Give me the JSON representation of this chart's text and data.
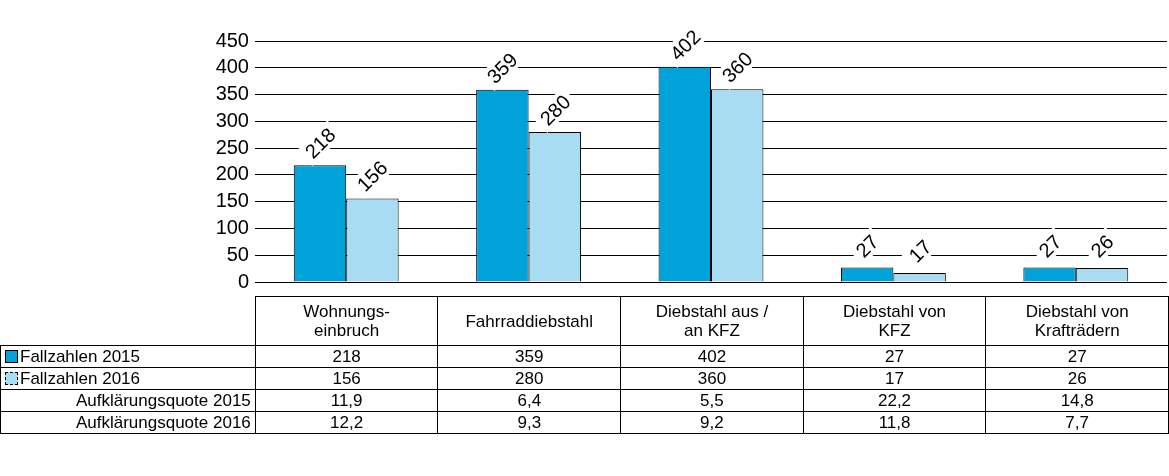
{
  "chart_data": [
    {
      "type": "bar",
      "categories": [
        null,
        null,
        null,
        null,
        null
      ],
      "series": [
        {
          "color": "#00a3d9",
          "values": [
            218,
            359,
            402,
            27,
            27
          ],
          "value_labels": [
            "218",
            "359",
            "402",
            "27",
            "27"
          ]
        },
        {
          "color": "#a8dcf2",
          "line_style": "dashed",
          "values": [
            156,
            280,
            360,
            17,
            26
          ],
          "value_labels": [
            "156",
            "280",
            "360",
            "17",
            "26"
          ]
        }
      ],
      "ylim": [
        0,
        450
      ],
      "yticks": [
        0,
        50,
        100,
        150,
        200,
        250,
        300,
        350,
        400,
        450
      ],
      "grid": "y"
    },
    {
      "type": "other",
      "categories": [
        "Wohnungs-\neinbruch",
        "Fahrraddiebstahl",
        "Diebstahl aus /\nan KFZ",
        "Diebstahl von\nKFZ",
        "Diebstahl von\nKrafträdern"
      ],
      "series": [
        {
          "name": "Fallzahlen 2015",
          "color": "#00a3d9",
          "values": [
            218,
            359,
            402,
            27,
            27
          ]
        },
        {
          "name": "Fallzahlen 2016",
          "color": "#a8dcf2",
          "line_style": "dashed",
          "values": [
            156,
            280,
            360,
            17,
            26
          ]
        },
        {
          "name": "Aufklärungsquote 2015",
          "values": [
            11.9,
            6.4,
            5.5,
            22.2,
            14.8
          ],
          "value_labels": [
            "11,9",
            "6,4",
            "5,5",
            "22,2",
            "14,8"
          ]
        },
        {
          "name": "Aufklärungsquote 2016",
          "values": [
            12.2,
            9.3,
            9.2,
            11.8,
            7.7
          ],
          "value_labels": [
            "12,2",
            "9,3",
            "9,2",
            "11,8",
            "7,7"
          ]
        }
      ],
      "legend": "left",
      "data_labels": true
    }
  ]
}
